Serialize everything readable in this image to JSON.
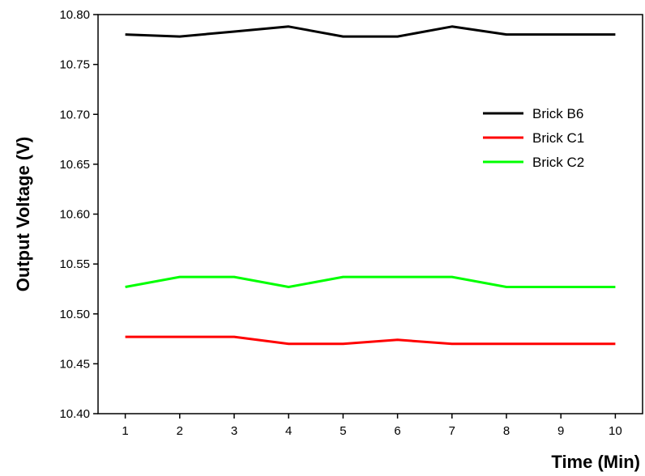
{
  "chart_data": {
    "type": "line",
    "title": "",
    "xlabel": "Time (Min)",
    "ylabel": "Output Voltage (V)",
    "xlim": [
      0.5,
      10.5
    ],
    "ylim": [
      10.4,
      10.8
    ],
    "x": [
      1,
      2,
      3,
      4,
      5,
      6,
      7,
      8,
      9,
      10
    ],
    "x_ticks": [
      "1",
      "2",
      "3",
      "4",
      "5",
      "6",
      "7",
      "8",
      "9",
      "10"
    ],
    "y_ticks": [
      {
        "value": 10.4,
        "label": "10.40"
      },
      {
        "value": 10.45,
        "label": "10.45"
      },
      {
        "value": 10.5,
        "label": "10.50"
      },
      {
        "value": 10.55,
        "label": "10.55"
      },
      {
        "value": 10.6,
        "label": "10.60"
      },
      {
        "value": 10.65,
        "label": "10.65"
      },
      {
        "value": 10.7,
        "label": "10.70"
      },
      {
        "value": 10.75,
        "label": "10.75"
      },
      {
        "value": 10.8,
        "label": "10.80"
      }
    ],
    "grid": false,
    "legend_position": "right",
    "series": [
      {
        "name": "Brick B6",
        "color": "#000000",
        "values": [
          10.78,
          10.778,
          10.783,
          10.788,
          10.778,
          10.778,
          10.788,
          10.78,
          10.78,
          10.78
        ]
      },
      {
        "name": "Brick C1",
        "color": "#ff0000",
        "values": [
          10.477,
          10.477,
          10.477,
          10.47,
          10.47,
          10.474,
          10.47,
          10.47,
          10.47,
          10.47
        ]
      },
      {
        "name": "Brick C2",
        "color": "#00ff00",
        "values": [
          10.527,
          10.537,
          10.537,
          10.527,
          10.537,
          10.537,
          10.537,
          10.527,
          10.527,
          10.527
        ]
      }
    ]
  }
}
